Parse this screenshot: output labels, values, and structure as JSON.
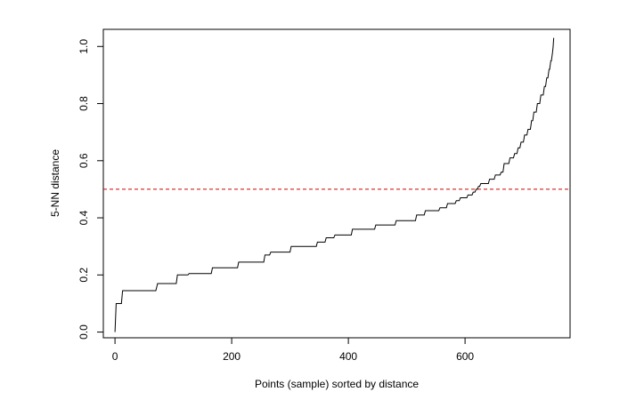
{
  "chart_data": {
    "type": "line",
    "title": "",
    "xlabel": "Points (sample) sorted by distance",
    "ylabel": "5-NN distance",
    "xlim": [
      -20,
      780
    ],
    "ylim": [
      -0.02,
      1.06
    ],
    "x_ticks": [
      0,
      200,
      400,
      600
    ],
    "y_ticks": [
      0.0,
      0.2,
      0.4,
      0.6,
      0.8,
      1.0
    ],
    "x_tick_labels": [
      "0",
      "200",
      "400",
      "600"
    ],
    "y_tick_labels": [
      "0.0",
      "0.2",
      "0.4",
      "0.6",
      "0.8",
      "1.0"
    ],
    "grid": false,
    "series": [
      {
        "style": "step",
        "color": "#000000",
        "x": [
          0,
          2,
          11,
          13,
          70,
          73,
          105,
          107,
          125,
          127,
          165,
          167,
          210,
          212,
          255,
          257,
          265,
          267,
          300,
          302,
          345,
          347,
          360,
          362,
          375,
          377,
          405,
          407,
          445,
          447,
          480,
          482,
          515,
          517,
          530,
          532,
          555,
          557,
          568,
          570,
          583,
          585,
          590,
          592,
          603,
          605,
          612,
          614,
          617,
          619,
          621,
          623,
          625,
          627,
          640,
          642,
          650,
          652,
          660,
          662,
          665,
          667,
          675,
          677,
          683,
          685,
          689,
          691,
          694,
          696,
          700,
          702,
          706,
          708,
          712,
          714,
          716,
          718,
          722,
          724,
          728,
          730,
          734,
          736,
          738,
          740,
          742,
          744,
          745,
          747,
          748,
          750,
          751,
          752
        ],
        "y": [
          0.0,
          0.1,
          0.1,
          0.145,
          0.145,
          0.17,
          0.17,
          0.2,
          0.2,
          0.205,
          0.205,
          0.225,
          0.225,
          0.245,
          0.245,
          0.27,
          0.27,
          0.28,
          0.28,
          0.3,
          0.3,
          0.315,
          0.315,
          0.33,
          0.33,
          0.34,
          0.34,
          0.36,
          0.36,
          0.375,
          0.375,
          0.39,
          0.39,
          0.41,
          0.41,
          0.425,
          0.425,
          0.435,
          0.435,
          0.45,
          0.45,
          0.46,
          0.46,
          0.47,
          0.47,
          0.48,
          0.48,
          0.49,
          0.49,
          0.5,
          0.5,
          0.51,
          0.51,
          0.52,
          0.52,
          0.535,
          0.535,
          0.55,
          0.55,
          0.56,
          0.56,
          0.59,
          0.59,
          0.61,
          0.61,
          0.625,
          0.625,
          0.645,
          0.645,
          0.665,
          0.665,
          0.69,
          0.69,
          0.71,
          0.71,
          0.74,
          0.74,
          0.77,
          0.77,
          0.8,
          0.8,
          0.83,
          0.83,
          0.86,
          0.86,
          0.89,
          0.89,
          0.92,
          0.92,
          0.95,
          0.95,
          0.98,
          1.0,
          1.03
        ]
      }
    ],
    "reference_lines": [
      {
        "orientation": "horizontal",
        "y": 0.5,
        "color": "#cc0000",
        "dash": "dashed"
      }
    ]
  }
}
